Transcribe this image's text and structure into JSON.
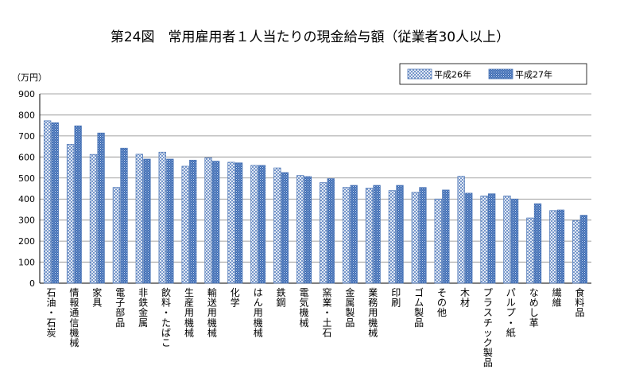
{
  "chart_data": {
    "type": "bar",
    "title": "第24図　常用雇用者１人当たりの現金給与額（従業者30人以上）",
    "ylabel": "（万円）",
    "xlabel": "",
    "ylim": [
      0,
      900
    ],
    "yticks": [
      0,
      100,
      200,
      300,
      400,
      500,
      600,
      700,
      800,
      900
    ],
    "grid": true,
    "legend_position": "top-right",
    "categories": [
      "石油・石炭",
      "情報通信機械",
      "家具",
      "電子部品",
      "非鉄金属",
      "飲料・たばこ",
      "生産用機械",
      "輸送用機械",
      "化学",
      "はん用機械",
      "鉄鋼",
      "電気機械",
      "窯業・土石",
      "金属製品",
      "業務用機械",
      "印刷",
      "ゴム製品",
      "その他",
      "木材",
      "プラスチック製品",
      "パルプ・紙",
      "なめし革",
      "繊維",
      "食料品"
    ],
    "series": [
      {
        "name": "平成26年",
        "pattern": "crosshatch",
        "color": "#4a74b5",
        "values": [
          772,
          660,
          612,
          455,
          613,
          623,
          556,
          596,
          575,
          560,
          548,
          512,
          478,
          455,
          452,
          440,
          432,
          400,
          508,
          415,
          415,
          310,
          345,
          298
        ]
      },
      {
        "name": "平成27年",
        "pattern": "dots",
        "color": "#4a74b5",
        "values": [
          763,
          748,
          714,
          642,
          590,
          590,
          585,
          580,
          572,
          560,
          526,
          507,
          497,
          465,
          465,
          465,
          455,
          443,
          428,
          425,
          400,
          378,
          348,
          323
        ]
      }
    ]
  }
}
